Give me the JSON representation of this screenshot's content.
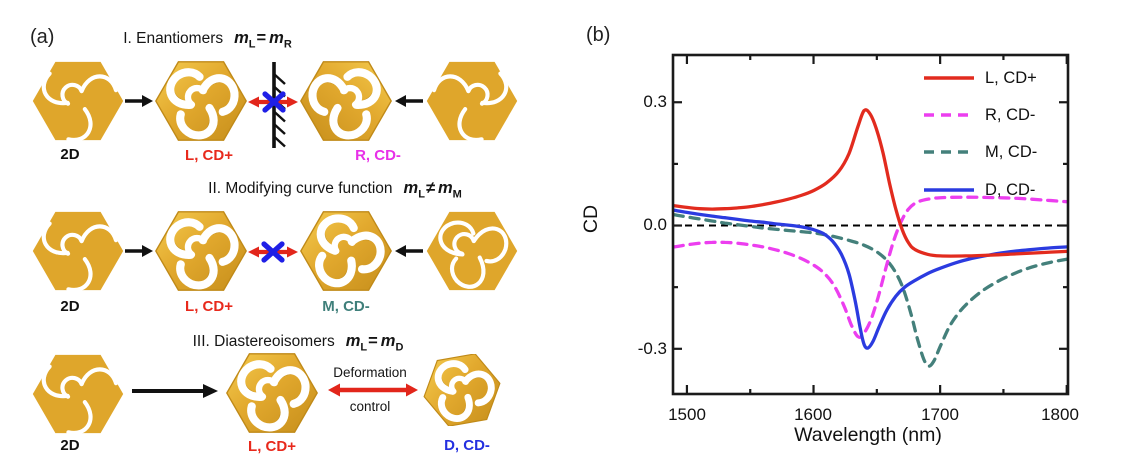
{
  "panel_a": {
    "label": "(a)",
    "row1": {
      "title_prefix": "I. Enantiomers",
      "m": "m",
      "sub_left": "L",
      "op": "=",
      "sub_right": "R",
      "left_2d_label": "2D",
      "left_3d_label": "L, CD+",
      "right_3d_label": "R, CD-"
    },
    "row2": {
      "title_prefix": "II. Modifying curve function",
      "m": "m",
      "sub_left": "L",
      "op": "≠",
      "sub_right": "M",
      "left_2d_label": "2D",
      "left_3d_label": "L, CD+",
      "right_3d_label": "M, CD-"
    },
    "row3": {
      "title_prefix": "III. Diastereoisomers",
      "m": "m",
      "sub_left": "L",
      "op": "=",
      "sub_right": "D",
      "left_2d_label": "2D",
      "left_3d_label": "L, CD+",
      "right_3d_label": "D, CD-",
      "deformation_line1": "Deformation",
      "deformation_line2": "control"
    },
    "colors": {
      "gold": "#DFA62B",
      "l_label": "#E8291C",
      "r_label": "#E830E8",
      "m_label": "#3F7F7A",
      "d_label": "#2430E0",
      "arrow_red": "#E2261B",
      "cross_blue": "#1F1FE6"
    }
  },
  "panel_b": {
    "label": "(b)"
  },
  "chart_data": {
    "type": "line",
    "title": "",
    "xlabel": "Wavelength (nm)",
    "ylabel": "CD",
    "xlim": [
      1489,
      1801
    ],
    "ylim": [
      -0.41,
      0.415
    ],
    "xticks": [
      1500,
      1600,
      1700,
      1800
    ],
    "xtick_labels": [
      "1500",
      "1600",
      "1700",
      "1800"
    ],
    "xticks_minor": [
      1550,
      1650,
      1750
    ],
    "yticks": [
      0.3,
      0.0,
      -0.3
    ],
    "ytick_labels": [
      "0.3",
      "0.0",
      "-0.3"
    ],
    "yticks_minor": [
      0.15,
      -0.15
    ],
    "grid": false,
    "legend_position": "top-right",
    "zero_line": {
      "y": 0,
      "style": "dashed",
      "color": "#000000"
    },
    "frame_color": "#1a1a1a",
    "draw_order": [
      2,
      1,
      3,
      0
    ],
    "series": [
      {
        "name": "L, CD+",
        "color": "#E22B1E",
        "style": "solid",
        "points": [
          [
            1490,
            0.048
          ],
          [
            1500,
            0.044
          ],
          [
            1510,
            0.041
          ],
          [
            1520,
            0.04
          ],
          [
            1530,
            0.041
          ],
          [
            1540,
            0.043
          ],
          [
            1550,
            0.046
          ],
          [
            1560,
            0.051
          ],
          [
            1570,
            0.057
          ],
          [
            1580,
            0.064
          ],
          [
            1590,
            0.073
          ],
          [
            1600,
            0.085
          ],
          [
            1610,
            0.103
          ],
          [
            1620,
            0.132
          ],
          [
            1628,
            0.175
          ],
          [
            1635,
            0.24
          ],
          [
            1640,
            0.28
          ],
          [
            1645,
            0.27
          ],
          [
            1650,
            0.232
          ],
          [
            1655,
            0.175
          ],
          [
            1660,
            0.103
          ],
          [
            1665,
            0.04
          ],
          [
            1670,
            -0.01
          ],
          [
            1675,
            -0.042
          ],
          [
            1680,
            -0.058
          ],
          [
            1690,
            -0.07
          ],
          [
            1700,
            -0.074
          ],
          [
            1720,
            -0.074
          ],
          [
            1740,
            -0.072
          ],
          [
            1760,
            -0.069
          ],
          [
            1780,
            -0.066
          ],
          [
            1800,
            -0.063
          ]
        ]
      },
      {
        "name": "R, CD-",
        "color": "#EC3EEF",
        "style": "dashed",
        "points": [
          [
            1490,
            -0.052
          ],
          [
            1500,
            -0.047
          ],
          [
            1510,
            -0.043
          ],
          [
            1520,
            -0.041
          ],
          [
            1530,
            -0.041
          ],
          [
            1540,
            -0.043
          ],
          [
            1550,
            -0.047
          ],
          [
            1560,
            -0.052
          ],
          [
            1570,
            -0.059
          ],
          [
            1580,
            -0.068
          ],
          [
            1590,
            -0.08
          ],
          [
            1600,
            -0.096
          ],
          [
            1608,
            -0.115
          ],
          [
            1616,
            -0.145
          ],
          [
            1624,
            -0.195
          ],
          [
            1630,
            -0.243
          ],
          [
            1635,
            -0.27
          ],
          [
            1639,
            -0.266
          ],
          [
            1645,
            -0.232
          ],
          [
            1651,
            -0.175
          ],
          [
            1657,
            -0.105
          ],
          [
            1663,
            -0.04
          ],
          [
            1669,
            0.008
          ],
          [
            1675,
            0.04
          ],
          [
            1682,
            0.057
          ],
          [
            1692,
            0.065
          ],
          [
            1702,
            0.068
          ],
          [
            1722,
            0.069
          ],
          [
            1742,
            0.068
          ],
          [
            1762,
            0.066
          ],
          [
            1782,
            0.062
          ],
          [
            1800,
            0.058
          ]
        ]
      },
      {
        "name": "M, CD-",
        "color": "#44807B",
        "style": "dashed",
        "points": [
          [
            1490,
            0.026
          ],
          [
            1500,
            0.021
          ],
          [
            1510,
            0.016
          ],
          [
            1520,
            0.011
          ],
          [
            1530,
            0.006
          ],
          [
            1540,
            0.002
          ],
          [
            1550,
            -0.002
          ],
          [
            1560,
            -0.006
          ],
          [
            1580,
            -0.012
          ],
          [
            1600,
            -0.018
          ],
          [
            1615,
            -0.026
          ],
          [
            1630,
            -0.038
          ],
          [
            1640,
            -0.048
          ],
          [
            1650,
            -0.064
          ],
          [
            1658,
            -0.085
          ],
          [
            1665,
            -0.115
          ],
          [
            1671,
            -0.155
          ],
          [
            1677,
            -0.215
          ],
          [
            1682,
            -0.275
          ],
          [
            1687,
            -0.325
          ],
          [
            1691,
            -0.342
          ],
          [
            1695,
            -0.33
          ],
          [
            1700,
            -0.295
          ],
          [
            1707,
            -0.248
          ],
          [
            1714,
            -0.215
          ],
          [
            1722,
            -0.188
          ],
          [
            1732,
            -0.162
          ],
          [
            1742,
            -0.142
          ],
          [
            1752,
            -0.126
          ],
          [
            1764,
            -0.11
          ],
          [
            1776,
            -0.098
          ],
          [
            1788,
            -0.089
          ],
          [
            1800,
            -0.082
          ]
        ]
      },
      {
        "name": "D, CD-",
        "color": "#2B3BE0",
        "style": "solid",
        "points": [
          [
            1490,
            0.037
          ],
          [
            1500,
            0.032
          ],
          [
            1510,
            0.027
          ],
          [
            1520,
            0.023
          ],
          [
            1530,
            0.019
          ],
          [
            1540,
            0.015
          ],
          [
            1550,
            0.011
          ],
          [
            1560,
            0.008
          ],
          [
            1570,
            0.004
          ],
          [
            1580,
            0.001
          ],
          [
            1590,
            -0.003
          ],
          [
            1600,
            -0.01
          ],
          [
            1608,
            -0.02
          ],
          [
            1615,
            -0.038
          ],
          [
            1622,
            -0.07
          ],
          [
            1628,
            -0.118
          ],
          [
            1633,
            -0.185
          ],
          [
            1637,
            -0.252
          ],
          [
            1640,
            -0.29
          ],
          [
            1643,
            -0.298
          ],
          [
            1647,
            -0.282
          ],
          [
            1652,
            -0.245
          ],
          [
            1658,
            -0.205
          ],
          [
            1665,
            -0.172
          ],
          [
            1672,
            -0.15
          ],
          [
            1680,
            -0.134
          ],
          [
            1690,
            -0.117
          ],
          [
            1700,
            -0.104
          ],
          [
            1712,
            -0.091
          ],
          [
            1725,
            -0.08
          ],
          [
            1740,
            -0.071
          ],
          [
            1755,
            -0.064
          ],
          [
            1770,
            -0.059
          ],
          [
            1785,
            -0.055
          ],
          [
            1800,
            -0.052
          ]
        ]
      }
    ]
  }
}
